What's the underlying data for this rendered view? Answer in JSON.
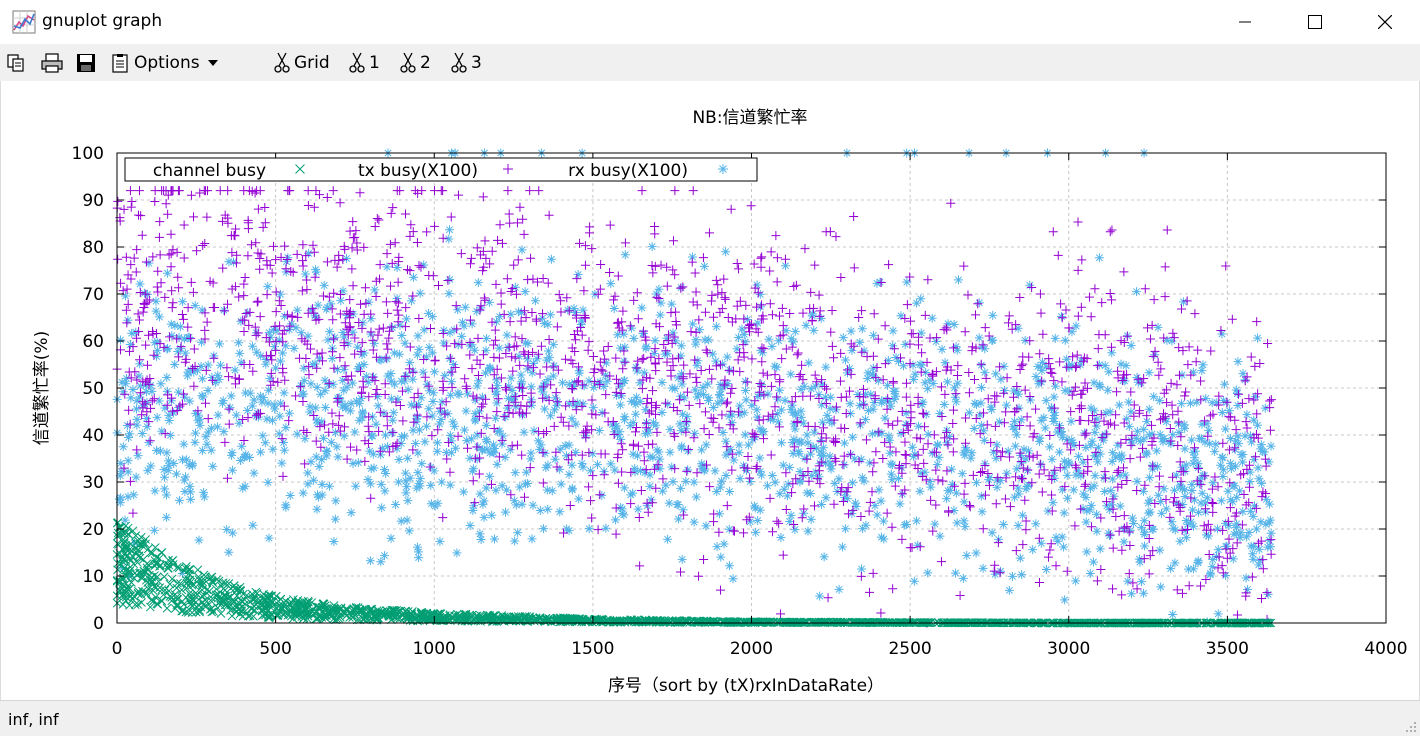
{
  "window": {
    "title": "gnuplot graph",
    "icon": "gnuplot-graph-icon"
  },
  "toolbar": {
    "options_label": "Options",
    "grid_label": "Grid",
    "plot1_label": "1",
    "plot2_label": "2",
    "plot3_label": "3"
  },
  "status": {
    "text": "inf,  inf"
  },
  "colors": {
    "tx": "#9400d3",
    "rx": "#56b4e9",
    "channel": "#009e73",
    "grid": "#c8c8c8"
  },
  "chart_data": {
    "type": "scatter",
    "title": "NB:信道繁忙率",
    "xlabel": "序号（sort by (tX)rxInDataRate）",
    "ylabel": "信道繁忙率(%)",
    "xlim": [
      0,
      4000
    ],
    "ylim": [
      0,
      100
    ],
    "xticks": [
      "0",
      "500",
      "1000",
      "1500",
      "2000",
      "2500",
      "3000",
      "3500",
      "4000"
    ],
    "yticks": [
      "0",
      "10",
      "20",
      "30",
      "40",
      "50",
      "60",
      "70",
      "80",
      "90",
      "100"
    ],
    "grid": true,
    "legend_placement": "top-left",
    "series": [
      {
        "name": "channel busy",
        "marker": "x",
        "color": "#009e73",
        "approx_points": 3640,
        "x_range": [
          0,
          3640
        ],
        "description_values": "starts near 10–18 at x=0, decays to ~0 by x≈1500, stays ~0 to x≈3640",
        "sample": [
          [
            0,
            15
          ],
          [
            50,
            14
          ],
          [
            100,
            12
          ],
          [
            200,
            9
          ],
          [
            300,
            7
          ],
          [
            400,
            5
          ],
          [
            500,
            4
          ],
          [
            700,
            2.5
          ],
          [
            1000,
            1.5
          ],
          [
            1500,
            0.6
          ],
          [
            2000,
            0.2
          ],
          [
            3000,
            0
          ],
          [
            3640,
            0
          ]
        ]
      },
      {
        "name": "tx busy(X100)",
        "marker": "+",
        "color": "#9400d3",
        "approx_points": 3640,
        "x_range": [
          0,
          3640
        ],
        "sample": [
          [
            0,
            65
          ],
          [
            200,
            70
          ],
          [
            500,
            65
          ],
          [
            1000,
            60
          ],
          [
            1500,
            55
          ],
          [
            2000,
            50
          ],
          [
            2500,
            45
          ],
          [
            3000,
            45
          ],
          [
            3500,
            35
          ],
          [
            3640,
            30
          ]
        ]
      },
      {
        "name": "rx busy(X100)",
        "marker": "*",
        "color": "#56b4e9",
        "approx_points": 3640,
        "x_range": [
          0,
          3640
        ],
        "sample": [
          [
            0,
            40
          ],
          [
            200,
            45
          ],
          [
            500,
            48
          ],
          [
            1000,
            45
          ],
          [
            1500,
            45
          ],
          [
            2000,
            42
          ],
          [
            2500,
            40
          ],
          [
            3000,
            40
          ],
          [
            3500,
            30
          ],
          [
            3640,
            25
          ]
        ]
      }
    ]
  }
}
